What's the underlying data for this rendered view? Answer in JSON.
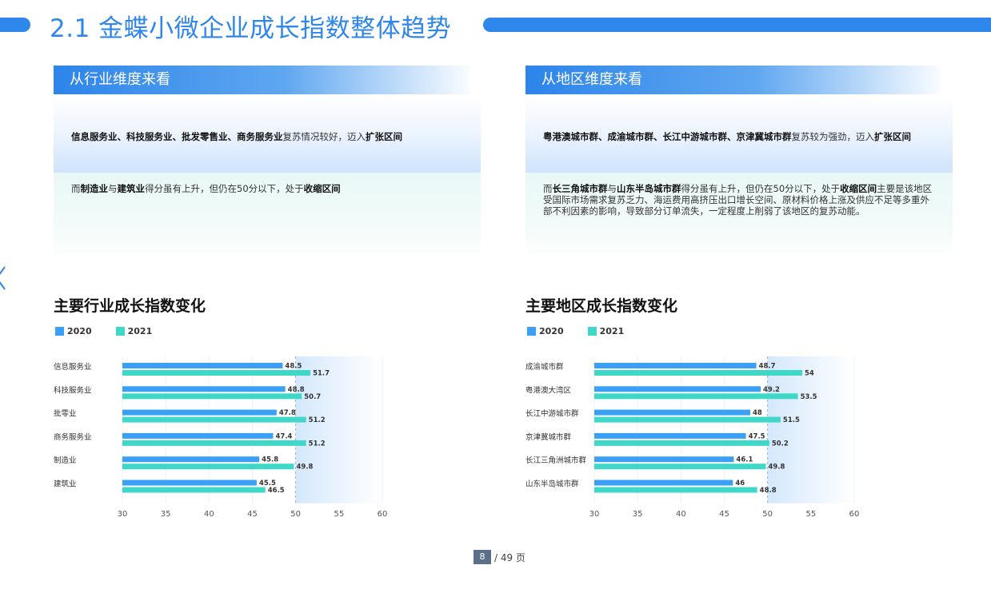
{
  "page": {
    "title": "2.1 金蝶小微企业成长指数整体趋势",
    "accent": "#2f86eb"
  },
  "left_section": {
    "heading": "从行业维度来看",
    "top_bold": "信息服务业、科技服务业、批发零售业、商务服务业",
    "top_text": "复苏情况较好，迈入",
    "top_bold2": "扩张区间",
    "bottom_pre": "而",
    "bottom_bold1": "制造业",
    "bottom_mid": "与",
    "bottom_bold2": "建筑业",
    "bottom_text": "得分虽有上升，但仍在50分以下，处于",
    "bottom_bold3": "收缩区间",
    "chart_title": "主要行业成长指数变化"
  },
  "right_section": {
    "heading": "从地区维度来看",
    "top_bold": "粤港澳城市群、成渝城市群、长江中游城市群、京津冀城市群",
    "top_text": "复苏较为强劲，迈入",
    "top_bold2": "扩张区间",
    "bottom_pre": "而",
    "bottom_bold1": "长三角城市群",
    "bottom_mid": "与",
    "bottom_bold2": "山东半岛城市群",
    "bottom_text": "得分虽有上升，但仍在50分以下，处于",
    "bottom_bold3": "收缩区间",
    "bottom_tail": "主要是该地区受国际市场需求复苏乏力、海运费用高挤压出口增长空间、原材料价格上涨及供应不足等多重外部不利因素的影响，导致部分订单流失，一定程度上削弱了该地区的复苏动能。",
    "chart_title": "主要地区成长指数变化"
  },
  "legend": {
    "s2020": "2020",
    "s2021": "2021",
    "color2020": "#3aa0f5",
    "color2021": "#3fd8c8"
  },
  "chart_data": [
    {
      "type": "bar",
      "orientation": "horizontal",
      "categories": [
        "信息服务业",
        "科技服务业",
        "批零业",
        "商务服务业",
        "制造业",
        "建筑业"
      ],
      "series": [
        {
          "name": "2020",
          "values": [
            48.5,
            48.8,
            47.8,
            47.4,
            45.8,
            45.5
          ]
        },
        {
          "name": "2021",
          "values": [
            51.7,
            50.7,
            51.2,
            51.2,
            49.8,
            46.5
          ]
        }
      ],
      "xlim": [
        30,
        60
      ],
      "ticks": [
        30,
        35,
        40,
        45,
        50,
        55,
        60
      ],
      "reference_line": 50,
      "highlight_range": [
        50,
        60
      ]
    },
    {
      "type": "bar",
      "orientation": "horizontal",
      "categories": [
        "成渝城市群",
        "粤港澳大湾区",
        "长江中游城市群",
        "京津冀城市群",
        "长江三角洲城市群",
        "山东半岛城市群"
      ],
      "series": [
        {
          "name": "2020",
          "values": [
            48.7,
            49.2,
            48,
            47.5,
            46.1,
            46
          ]
        },
        {
          "name": "2021",
          "values": [
            54,
            53.5,
            51.5,
            50.2,
            49.8,
            48.8
          ]
        }
      ],
      "xlim": [
        30,
        60
      ],
      "ticks": [
        30,
        35,
        40,
        45,
        50,
        55,
        60
      ],
      "reference_line": 50,
      "highlight_range": [
        50,
        60
      ]
    }
  ],
  "pager": {
    "current": "8",
    "total_text": "/ 49 页"
  }
}
